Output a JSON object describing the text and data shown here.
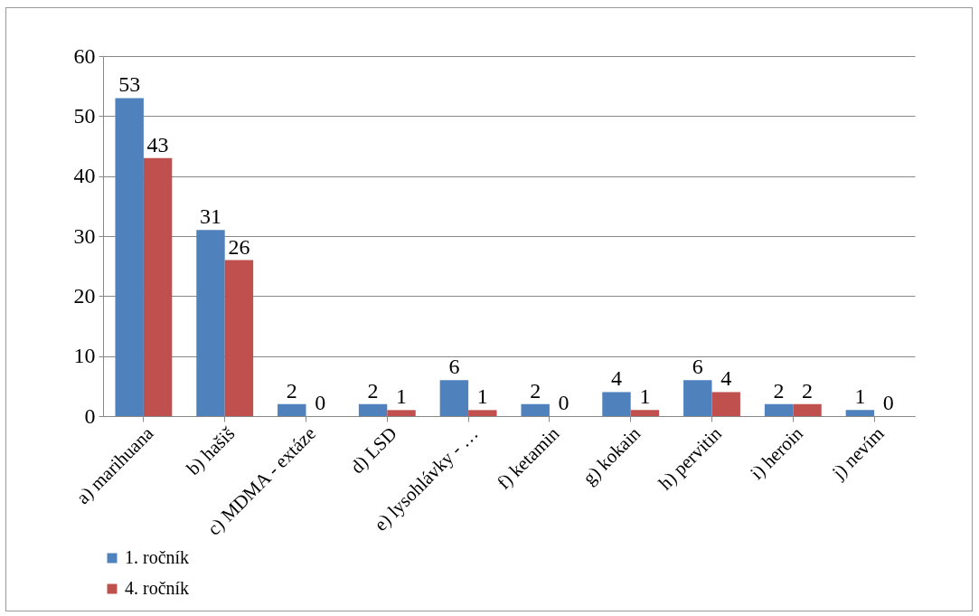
{
  "chart_data": {
    "type": "bar",
    "categories": [
      "a) marihuana",
      "b) hašiš",
      "c) MDMA - extáze",
      "d) LSD",
      "e) lysohlávky - …",
      "f) ketamin",
      "g) kokain",
      "h) pervitin",
      "i) heroin",
      "j) nevím"
    ],
    "series": [
      {
        "name": "1. ročník",
        "color": "#4f81bd",
        "values": [
          53,
          31,
          2,
          2,
          6,
          2,
          4,
          6,
          2,
          1
        ]
      },
      {
        "name": "4. ročník",
        "color": "#c0504d",
        "values": [
          43,
          26,
          0,
          1,
          1,
          0,
          1,
          4,
          2,
          0
        ]
      }
    ],
    "ylim": [
      0,
      60
    ],
    "yticks": [
      0,
      10,
      20,
      30,
      40,
      50,
      60
    ],
    "grid": "y",
    "legend": "bottom",
    "data_labels": true
  }
}
